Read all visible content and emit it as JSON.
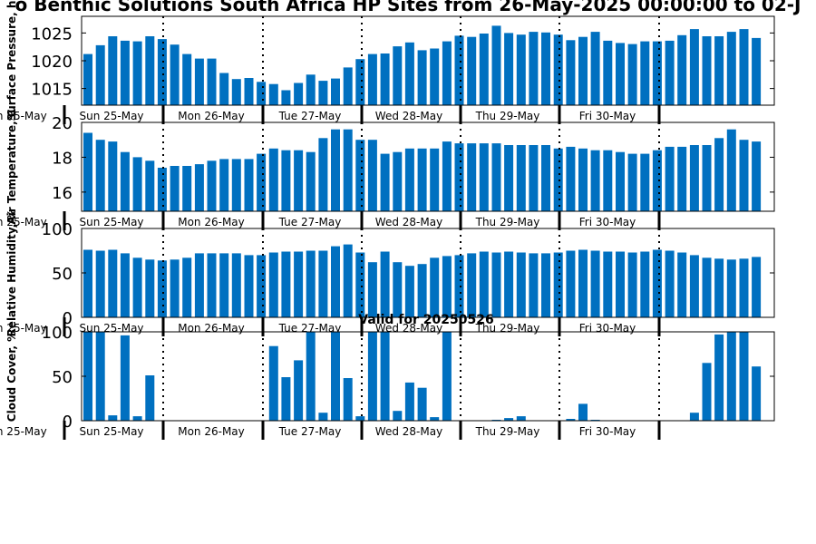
{
  "title": "o Benthic Solutions South Africa HP Sites from 26-May-2025 00:00:00 to 02-J",
  "valid_label": "Valid for 20250526",
  "colors": {
    "bar": "#0070c0",
    "axis": "#000000",
    "divider": "#000000"
  },
  "chart_data": [
    {
      "type": "bar",
      "ylabel": "Surface Pressure, h",
      "ylim": [
        1012,
        1028
      ],
      "yticks": [
        1015,
        1020,
        1025
      ],
      "day_labels": [
        "un 25-May",
        "Sun 25-May",
        "Mon 26-May",
        "Tue 27-May",
        "Wed 28-May",
        "Thu 29-May",
        "Fri 30-May"
      ],
      "values": [
        1021.2,
        1022.8,
        1024.4,
        1023.6,
        1023.5,
        1024.4,
        1023.9,
        1022.9,
        1021.2,
        1020.4,
        1020.4,
        1017.8,
        1016.7,
        1016.9,
        1016.2,
        1015.8,
        1014.7,
        1016.0,
        1017.5,
        1016.4,
        1016.8,
        1018.8,
        1020.3,
        1021.2,
        1021.3,
        1022.6,
        1023.3,
        1021.9,
        1022.2,
        1023.5,
        1024.5,
        1024.3,
        1024.9,
        1026.3,
        1025.0,
        1024.7,
        1025.2,
        1025.1,
        1024.7,
        1023.7,
        1024.3,
        1025.2,
        1023.6,
        1023.2,
        1023.0,
        1023.5,
        1023.5,
        1023.6,
        1024.6,
        1025.7,
        1024.4,
        1024.4,
        1025.2,
        1025.7,
        1024.1
      ]
    },
    {
      "type": "bar",
      "ylabel": "Air Temperature, C",
      "ylim": [
        14.9,
        20.0
      ],
      "yticks": [
        16,
        18,
        20
      ],
      "day_labels": [
        "un 25-May",
        "Sun 25-May",
        "Mon 26-May",
        "Tue 27-May",
        "Wed 28-May",
        "Thu 29-May",
        "Fri 30-May"
      ],
      "values": [
        19.4,
        19.0,
        18.9,
        18.3,
        18.0,
        17.8,
        17.4,
        17.5,
        17.5,
        17.6,
        17.8,
        17.9,
        17.9,
        17.9,
        18.2,
        18.5,
        18.4,
        18.4,
        18.3,
        19.1,
        19.6,
        19.6,
        19.0,
        19.0,
        18.2,
        18.3,
        18.5,
        18.5,
        18.5,
        18.9,
        18.8,
        18.8,
        18.8,
        18.8,
        18.7,
        18.7,
        18.7,
        18.7,
        18.5,
        18.6,
        18.5,
        18.4,
        18.4,
        18.3,
        18.2,
        18.2,
        18.4,
        18.6,
        18.6,
        18.7,
        18.7,
        19.1,
        19.6,
        19.0,
        18.9
      ]
    },
    {
      "type": "bar",
      "ylabel": "Relative Humidity, %",
      "ylim": [
        0,
        100
      ],
      "yticks": [
        0,
        50,
        100
      ],
      "day_labels": [
        "un 25-May",
        "Sun 25-May",
        "Mon 26-May",
        "Tue 27-May",
        "Wed 28-May",
        "Thu 29-May",
        "Fri 30-May"
      ],
      "values": [
        76,
        75,
        76,
        72,
        67,
        65,
        64,
        65,
        67,
        72,
        72,
        72,
        72,
        70,
        70,
        73,
        74,
        74,
        75,
        75,
        80,
        82,
        73,
        62,
        74,
        62,
        58,
        60,
        67,
        69,
        70,
        72,
        74,
        73,
        74,
        73,
        72,
        72,
        73,
        75,
        76,
        75,
        74,
        74,
        73,
        74,
        76,
        75,
        73,
        70,
        67,
        66,
        65,
        66,
        68
      ]
    },
    {
      "type": "bar",
      "ylabel": "Cloud Cover, %",
      "ylim": [
        0,
        100
      ],
      "yticks": [
        0,
        50,
        100
      ],
      "day_labels": [
        "un 25-May",
        "Sun 25-May",
        "Mon 26-May",
        "Tue 27-May",
        "Wed 28-May",
        "Thu 29-May",
        "Fri 30-May"
      ],
      "values": [
        100,
        100,
        6,
        96,
        5,
        51,
        0,
        0,
        0,
        0,
        0,
        0,
        0,
        0,
        0,
        84,
        49,
        68,
        100,
        9,
        100,
        48,
        5,
        100,
        100,
        11,
        43,
        37,
        4,
        100,
        0,
        0,
        0,
        1,
        3,
        5,
        0,
        0,
        0,
        2,
        19,
        1,
        0,
        0,
        0,
        0,
        0,
        0,
        0,
        9,
        65,
        97,
        100,
        100,
        61
      ]
    }
  ]
}
